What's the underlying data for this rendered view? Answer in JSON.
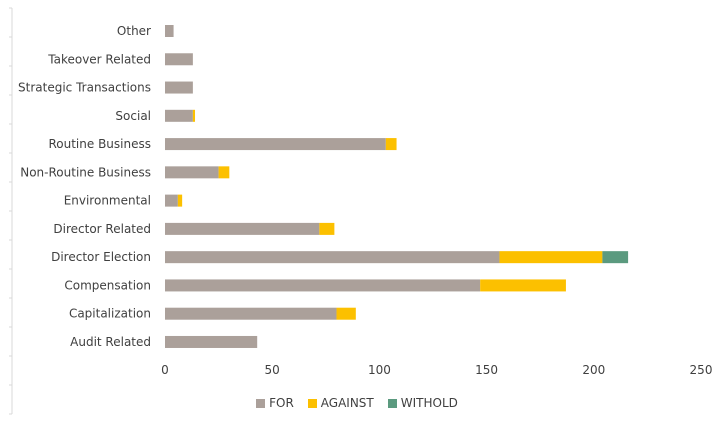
{
  "chart_data": {
    "type": "bar",
    "orientation": "horizontal",
    "stacked": true,
    "title": "",
    "xlabel": "",
    "ylabel": "",
    "categories": [
      "Other",
      "Takeover Related",
      "Strategic Transactions",
      "Social",
      "Routine Business",
      "Non-Routine Business",
      "Environmental",
      "Director Related",
      "Director Election",
      "Compensation",
      "Capitalization",
      "Audit Related"
    ],
    "series": [
      {
        "name": "FOR",
        "color": "#aba09a",
        "values": [
          4,
          13,
          13,
          13,
          103,
          25,
          6,
          72,
          156,
          147,
          80,
          43
        ]
      },
      {
        "name": "AGAINST",
        "color": "#fcc000",
        "values": [
          0,
          0,
          0,
          1,
          5,
          5,
          2,
          7,
          48,
          40,
          9,
          0
        ]
      },
      {
        "name": "WITHOLD",
        "color": "#5b9a7f",
        "values": [
          0,
          0,
          0,
          0,
          0,
          0,
          0,
          0,
          12,
          0,
          0,
          0
        ]
      }
    ],
    "xlim": [
      0,
      250
    ],
    "xticks": [
      0,
      50,
      100,
      150,
      200,
      250
    ],
    "grid": false,
    "legend_position": "bottom"
  }
}
